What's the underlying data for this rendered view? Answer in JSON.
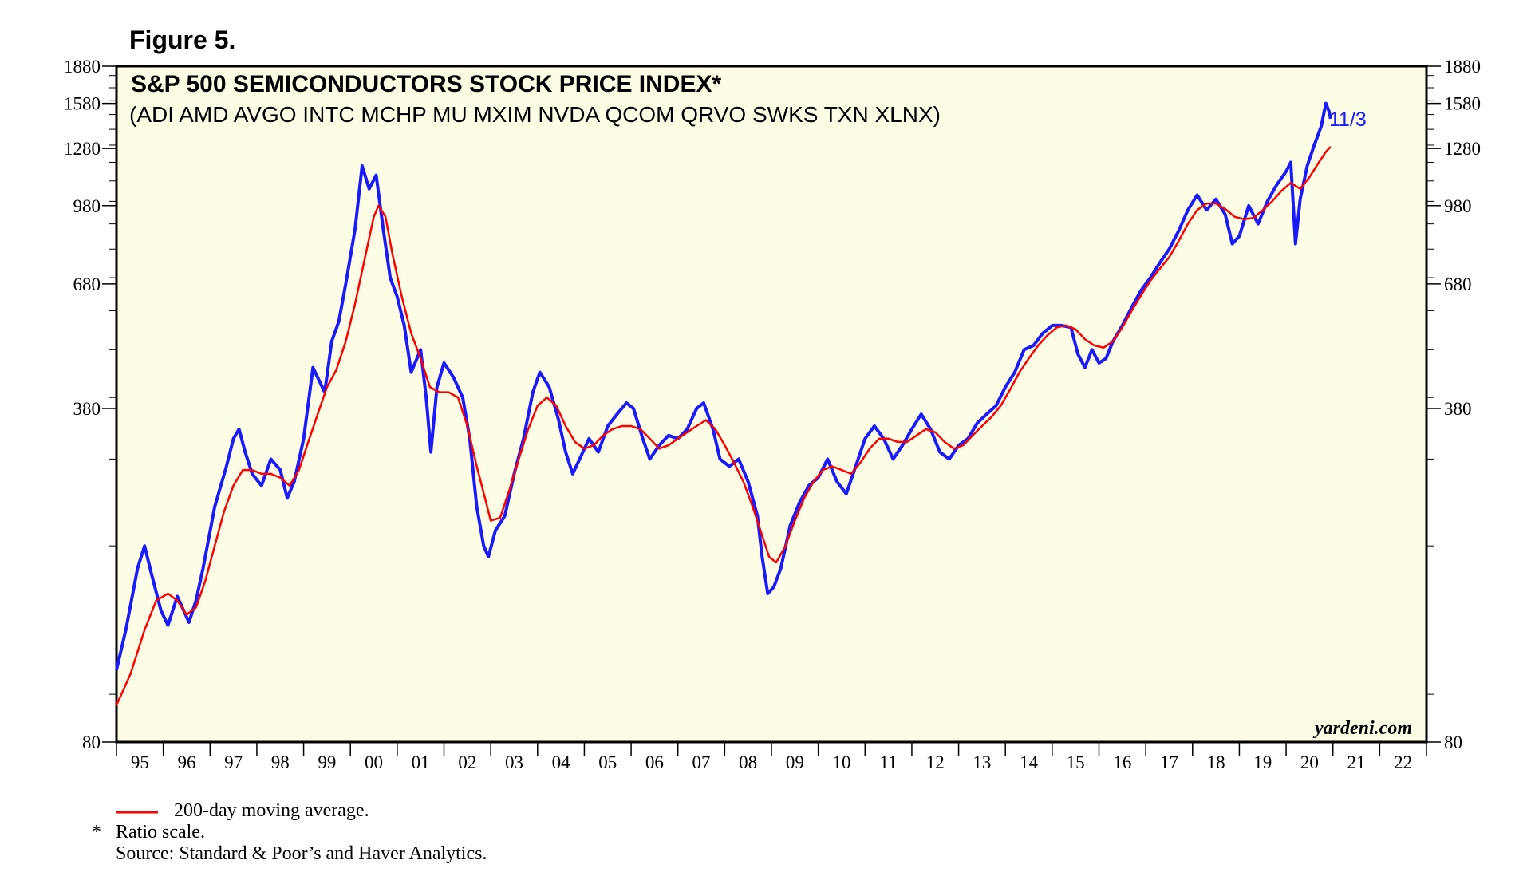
{
  "figure_label": "Figure 5.",
  "footnotes": {
    "legend_label": "200-day moving average.",
    "ratio_marker": "*",
    "ratio_note": "Ratio scale.",
    "source": "Source: Standard & Poor’s and Haver Analytics."
  },
  "chart_data": {
    "type": "line",
    "title": "S&P 500 SEMICONDUCTORS STOCK PRICE INDEX*",
    "subtitle": "(ADI AMD AVGO INTC MCHP MU MXIM NVDA QCOM QRVO SWKS TXN XLNX)",
    "watermark": "yardeni.com",
    "end_label": "11/3",
    "y_scale": "log",
    "ylim": [
      80,
      1880
    ],
    "y_ticks": [
      80,
      380,
      680,
      980,
      1280,
      1580,
      1880
    ],
    "xlim": [
      1995,
      2023
    ],
    "x_tick_labels": [
      "95",
      "96",
      "97",
      "98",
      "99",
      "00",
      "01",
      "02",
      "03",
      "04",
      "05",
      "06",
      "07",
      "08",
      "09",
      "10",
      "11",
      "12",
      "13",
      "14",
      "15",
      "16",
      "17",
      "18",
      "19",
      "20",
      "21",
      "22"
    ],
    "background_color": "#fdfde6",
    "series": [
      {
        "name": "",
        "color": "#1a1aff",
        "points": [
          [
            1995.0,
            112
          ],
          [
            1995.2,
            135
          ],
          [
            1995.45,
            180
          ],
          [
            1995.6,
            200
          ],
          [
            1995.75,
            175
          ],
          [
            1995.95,
            148
          ],
          [
            1996.1,
            138
          ],
          [
            1996.3,
            158
          ],
          [
            1996.55,
            140
          ],
          [
            1996.7,
            155
          ],
          [
            1996.85,
            180
          ],
          [
            1997.1,
            240
          ],
          [
            1997.35,
            290
          ],
          [
            1997.5,
            330
          ],
          [
            1997.62,
            345
          ],
          [
            1997.75,
            310
          ],
          [
            1997.9,
            280
          ],
          [
            1998.1,
            265
          ],
          [
            1998.3,
            300
          ],
          [
            1998.5,
            285
          ],
          [
            1998.65,
            250
          ],
          [
            1998.8,
            270
          ],
          [
            1999.0,
            330
          ],
          [
            1999.2,
            460
          ],
          [
            1999.45,
            410
          ],
          [
            1999.6,
            520
          ],
          [
            1999.75,
            570
          ],
          [
            1999.9,
            680
          ],
          [
            2000.1,
            880
          ],
          [
            2000.25,
            1180
          ],
          [
            2000.4,
            1060
          ],
          [
            2000.55,
            1130
          ],
          [
            2000.7,
            880
          ],
          [
            2000.85,
            700
          ],
          [
            2001.0,
            640
          ],
          [
            2001.15,
            560
          ],
          [
            2001.3,
            450
          ],
          [
            2001.5,
            500
          ],
          [
            2001.62,
            400
          ],
          [
            2001.72,
            310
          ],
          [
            2001.85,
            420
          ],
          [
            2002.0,
            470
          ],
          [
            2002.2,
            440
          ],
          [
            2002.4,
            400
          ],
          [
            2002.55,
            330
          ],
          [
            2002.7,
            240
          ],
          [
            2002.85,
            200
          ],
          [
            2002.95,
            190
          ],
          [
            2003.1,
            215
          ],
          [
            2003.3,
            230
          ],
          [
            2003.5,
            280
          ],
          [
            2003.7,
            330
          ],
          [
            2003.9,
            410
          ],
          [
            2004.05,
            450
          ],
          [
            2004.25,
            420
          ],
          [
            2004.45,
            360
          ],
          [
            2004.6,
            310
          ],
          [
            2004.75,
            280
          ],
          [
            2004.9,
            300
          ],
          [
            2005.1,
            330
          ],
          [
            2005.3,
            310
          ],
          [
            2005.5,
            350
          ],
          [
            2005.7,
            370
          ],
          [
            2005.9,
            390
          ],
          [
            2006.05,
            380
          ],
          [
            2006.25,
            330
          ],
          [
            2006.4,
            300
          ],
          [
            2006.6,
            320
          ],
          [
            2006.8,
            335
          ],
          [
            2007.0,
            330
          ],
          [
            2007.2,
            345
          ],
          [
            2007.4,
            380
          ],
          [
            2007.55,
            390
          ],
          [
            2007.75,
            345
          ],
          [
            2007.9,
            300
          ],
          [
            2008.1,
            290
          ],
          [
            2008.3,
            300
          ],
          [
            2008.5,
            270
          ],
          [
            2008.7,
            230
          ],
          [
            2008.8,
            190
          ],
          [
            2008.92,
            160
          ],
          [
            2009.05,
            165
          ],
          [
            2009.2,
            180
          ],
          [
            2009.4,
            220
          ],
          [
            2009.6,
            245
          ],
          [
            2009.8,
            265
          ],
          [
            2010.0,
            275
          ],
          [
            2010.2,
            300
          ],
          [
            2010.4,
            270
          ],
          [
            2010.6,
            255
          ],
          [
            2010.8,
            290
          ],
          [
            2011.0,
            330
          ],
          [
            2011.2,
            350
          ],
          [
            2011.4,
            330
          ],
          [
            2011.6,
            300
          ],
          [
            2011.8,
            320
          ],
          [
            2012.0,
            345
          ],
          [
            2012.2,
            370
          ],
          [
            2012.4,
            345
          ],
          [
            2012.6,
            310
          ],
          [
            2012.8,
            300
          ],
          [
            2013.0,
            320
          ],
          [
            2013.2,
            330
          ],
          [
            2013.4,
            355
          ],
          [
            2013.6,
            370
          ],
          [
            2013.8,
            385
          ],
          [
            2014.0,
            420
          ],
          [
            2014.2,
            450
          ],
          [
            2014.4,
            500
          ],
          [
            2014.6,
            510
          ],
          [
            2014.8,
            540
          ],
          [
            2015.0,
            560
          ],
          [
            2015.2,
            560
          ],
          [
            2015.4,
            555
          ],
          [
            2015.55,
            490
          ],
          [
            2015.7,
            460
          ],
          [
            2015.85,
            500
          ],
          [
            2016.0,
            470
          ],
          [
            2016.15,
            480
          ],
          [
            2016.3,
            520
          ],
          [
            2016.5,
            560
          ],
          [
            2016.7,
            610
          ],
          [
            2016.9,
            660
          ],
          [
            2017.1,
            700
          ],
          [
            2017.3,
            750
          ],
          [
            2017.5,
            800
          ],
          [
            2017.7,
            870
          ],
          [
            2017.9,
            960
          ],
          [
            2018.1,
            1030
          ],
          [
            2018.3,
            960
          ],
          [
            2018.5,
            1010
          ],
          [
            2018.7,
            940
          ],
          [
            2018.85,
            820
          ],
          [
            2019.0,
            850
          ],
          [
            2019.2,
            980
          ],
          [
            2019.4,
            900
          ],
          [
            2019.6,
            1000
          ],
          [
            2019.8,
            1080
          ],
          [
            2020.0,
            1150
          ],
          [
            2020.1,
            1200
          ],
          [
            2020.2,
            820
          ],
          [
            2020.3,
            1010
          ],
          [
            2020.45,
            1180
          ],
          [
            2020.6,
            1300
          ],
          [
            2020.75,
            1420
          ],
          [
            2020.85,
            1580
          ],
          [
            2020.92,
            1520
          ],
          [
            2020.95,
            1470
          ]
        ]
      },
      {
        "name": "200-day moving average",
        "color": "#ff0000",
        "points": [
          [
            1995.0,
            95
          ],
          [
            1995.3,
            110
          ],
          [
            1995.6,
            135
          ],
          [
            1995.85,
            155
          ],
          [
            1996.1,
            160
          ],
          [
            1996.3,
            155
          ],
          [
            1996.5,
            145
          ],
          [
            1996.7,
            150
          ],
          [
            1996.9,
            170
          ],
          [
            1997.1,
            200
          ],
          [
            1997.3,
            235
          ],
          [
            1997.5,
            265
          ],
          [
            1997.7,
            285
          ],
          [
            1997.9,
            285
          ],
          [
            1998.1,
            280
          ],
          [
            1998.3,
            280
          ],
          [
            1998.5,
            275
          ],
          [
            1998.7,
            265
          ],
          [
            1998.9,
            285
          ],
          [
            1999.1,
            325
          ],
          [
            1999.3,
            370
          ],
          [
            1999.5,
            420
          ],
          [
            1999.7,
            455
          ],
          [
            1999.9,
            520
          ],
          [
            2000.1,
            620
          ],
          [
            2000.3,
            760
          ],
          [
            2000.5,
            930
          ],
          [
            2000.6,
            980
          ],
          [
            2000.75,
            930
          ],
          [
            2000.9,
            780
          ],
          [
            2001.1,
            640
          ],
          [
            2001.3,
            540
          ],
          [
            2001.5,
            480
          ],
          [
            2001.7,
            420
          ],
          [
            2001.9,
            410
          ],
          [
            2002.1,
            410
          ],
          [
            2002.3,
            400
          ],
          [
            2002.5,
            350
          ],
          [
            2002.7,
            290
          ],
          [
            2002.9,
            245
          ],
          [
            2003.0,
            225
          ],
          [
            2003.2,
            228
          ],
          [
            2003.4,
            260
          ],
          [
            2003.6,
            300
          ],
          [
            2003.8,
            345
          ],
          [
            2004.0,
            385
          ],
          [
            2004.2,
            400
          ],
          [
            2004.4,
            385
          ],
          [
            2004.6,
            350
          ],
          [
            2004.8,
            325
          ],
          [
            2005.0,
            315
          ],
          [
            2005.2,
            320
          ],
          [
            2005.4,
            335
          ],
          [
            2005.6,
            345
          ],
          [
            2005.8,
            350
          ],
          [
            2006.0,
            350
          ],
          [
            2006.2,
            345
          ],
          [
            2006.4,
            330
          ],
          [
            2006.6,
            315
          ],
          [
            2006.8,
            320
          ],
          [
            2007.0,
            330
          ],
          [
            2007.2,
            340
          ],
          [
            2007.4,
            350
          ],
          [
            2007.6,
            360
          ],
          [
            2007.8,
            345
          ],
          [
            2008.0,
            320
          ],
          [
            2008.2,
            295
          ],
          [
            2008.4,
            270
          ],
          [
            2008.6,
            240
          ],
          [
            2008.8,
            210
          ],
          [
            2008.95,
            190
          ],
          [
            2009.1,
            185
          ],
          [
            2009.3,
            200
          ],
          [
            2009.5,
            225
          ],
          [
            2009.7,
            250
          ],
          [
            2009.9,
            270
          ],
          [
            2010.1,
            285
          ],
          [
            2010.3,
            290
          ],
          [
            2010.5,
            285
          ],
          [
            2010.7,
            280
          ],
          [
            2010.9,
            295
          ],
          [
            2011.1,
            315
          ],
          [
            2011.3,
            330
          ],
          [
            2011.5,
            330
          ],
          [
            2011.7,
            325
          ],
          [
            2011.9,
            325
          ],
          [
            2012.1,
            335
          ],
          [
            2012.3,
            345
          ],
          [
            2012.5,
            340
          ],
          [
            2012.7,
            325
          ],
          [
            2012.9,
            315
          ],
          [
            2013.1,
            320
          ],
          [
            2013.3,
            335
          ],
          [
            2013.5,
            350
          ],
          [
            2013.7,
            365
          ],
          [
            2013.9,
            385
          ],
          [
            2014.1,
            415
          ],
          [
            2014.3,
            450
          ],
          [
            2014.5,
            480
          ],
          [
            2014.7,
            510
          ],
          [
            2014.9,
            535
          ],
          [
            2015.1,
            555
          ],
          [
            2015.3,
            560
          ],
          [
            2015.5,
            550
          ],
          [
            2015.7,
            525
          ],
          [
            2015.9,
            510
          ],
          [
            2016.1,
            505
          ],
          [
            2016.3,
            520
          ],
          [
            2016.5,
            555
          ],
          [
            2016.7,
            600
          ],
          [
            2016.9,
            645
          ],
          [
            2017.1,
            690
          ],
          [
            2017.3,
            730
          ],
          [
            2017.5,
            770
          ],
          [
            2017.7,
            830
          ],
          [
            2017.9,
            900
          ],
          [
            2018.1,
            960
          ],
          [
            2018.3,
            990
          ],
          [
            2018.5,
            990
          ],
          [
            2018.7,
            965
          ],
          [
            2018.9,
            930
          ],
          [
            2019.1,
            920
          ],
          [
            2019.3,
            925
          ],
          [
            2019.5,
            960
          ],
          [
            2019.7,
            1000
          ],
          [
            2019.9,
            1050
          ],
          [
            2020.1,
            1090
          ],
          [
            2020.3,
            1060
          ],
          [
            2020.5,
            1120
          ],
          [
            2020.7,
            1200
          ],
          [
            2020.85,
            1260
          ],
          [
            2020.95,
            1290
          ]
        ]
      }
    ]
  }
}
